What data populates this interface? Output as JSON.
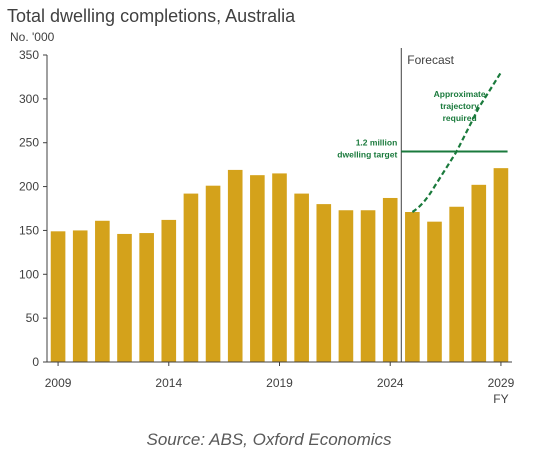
{
  "chart_data": {
    "type": "bar",
    "title": "Total dwelling completions, Australia",
    "ylabel": "No. '000",
    "x_unit_label": "FY",
    "categories": [
      "2009",
      "2010",
      "2011",
      "2012",
      "2013",
      "2014",
      "2015",
      "2016",
      "2017",
      "2018",
      "2019",
      "2020",
      "2021",
      "2022",
      "2023",
      "2024",
      "2025",
      "2026",
      "2027",
      "2028",
      "2029"
    ],
    "x_tick_labels": [
      "2009",
      "2014",
      "2019",
      "2024",
      "2029"
    ],
    "series": [
      {
        "values": [
          149,
          150,
          161,
          146,
          147,
          162,
          192,
          201,
          219,
          213,
          215,
          192,
          180,
          173,
          173,
          187,
          171,
          160,
          177,
          202,
          221
        ]
      }
    ],
    "ylim": [
      0,
      350
    ],
    "y_ticks": [
      0,
      50,
      100,
      150,
      200,
      250,
      300,
      350
    ],
    "forecast_start": "2024",
    "forecast_label": "Forecast",
    "target": {
      "value": 240,
      "from": "2025",
      "to": "2029",
      "label_lines": [
        "1.2 million",
        "dwelling target"
      ]
    },
    "trajectory": {
      "label_lines": [
        "Approximate",
        "trajectory",
        "required"
      ],
      "points": [
        {
          "x": "2025",
          "y": 171
        },
        {
          "x": "2026",
          "y": 200
        },
        {
          "x": "2027",
          "y": 240
        },
        {
          "x": "2028",
          "y": 290
        },
        {
          "x": "2029",
          "y": 330
        }
      ]
    },
    "colors": {
      "bar": "#d4a21b",
      "target": "#1a7a3c",
      "trajectory": "#1a7a3c",
      "axis": "#404040"
    },
    "grid": false,
    "legend": "none"
  },
  "source": "Source: ABS, Oxford Economics"
}
